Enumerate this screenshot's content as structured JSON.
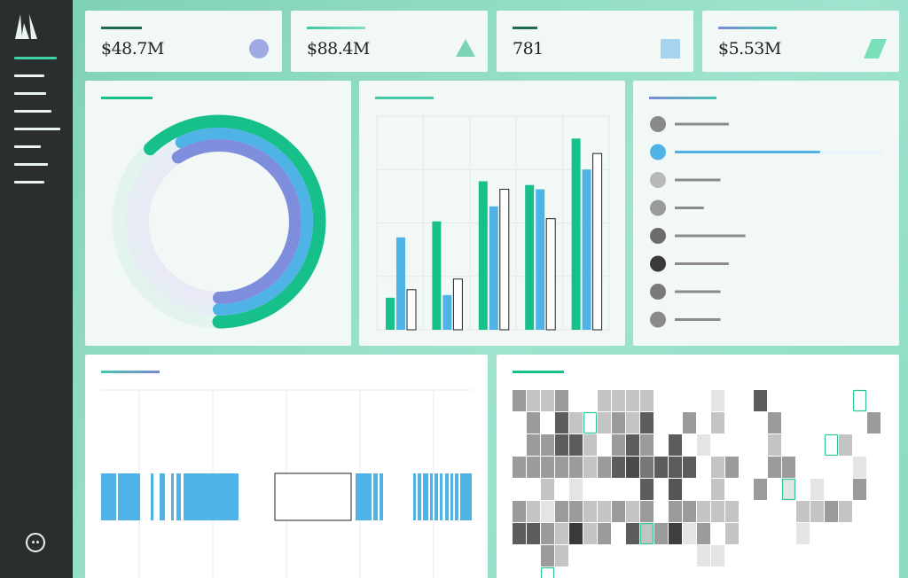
{
  "kpis": [
    {
      "value": "$48.7M",
      "shape": "circle-icon",
      "color": "#8f9ee0",
      "accent": [
        "#1c6b4e",
        "#1c6b4e"
      ]
    },
    {
      "value": "$88.4M",
      "shape": "triangle-icon",
      "color": "#7cd4b8",
      "accent": [
        "#41c6a2",
        "#7ee0c6"
      ]
    },
    {
      "value": "781",
      "shape": "square-icon",
      "color": "#a7d3ef",
      "accent": [
        "#1c6b4e",
        "#1c6b4e"
      ]
    },
    {
      "value": "$5.53M",
      "shape": "parallelogram-icon",
      "color": "#7be0b8",
      "accent": [
        "#7c88d8",
        "#44c4ad"
      ]
    }
  ],
  "colors": {
    "green": "#17c08a",
    "blue": "#4fb3e6",
    "purple": "#7e8ddc",
    "sidebar": "#2b2e2e"
  },
  "donut": {
    "rings": [
      {
        "name": "green-ring",
        "fraction": 0.62,
        "color": "#17c08a"
      },
      {
        "name": "blue-ring",
        "fraction": 0.57,
        "color": "#4fb3e6"
      },
      {
        "name": "purple-ring",
        "fraction": 0.59,
        "color": "#7e8ddc"
      }
    ]
  },
  "chart_data": {
    "type": "bar",
    "categories": [
      "",
      "",
      "",
      "",
      ""
    ],
    "ylim": [
      0,
      4
    ],
    "grid": true,
    "series": [
      {
        "values": [
          0.6,
          2.03,
          2.78,
          2.71,
          3.58
        ],
        "color": "#17c08a"
      },
      {
        "values": [
          1.73,
          0.65,
          2.31,
          2.63,
          3.0
        ],
        "color": "#4fb3e6"
      },
      {
        "values": [
          0.75,
          0.95,
          2.63,
          2.08,
          3.3
        ],
        "color": "#ffffff"
      }
    ]
  },
  "list_items": [
    {
      "color": "#8a8a8a",
      "line_fraction": 0.26
    },
    {
      "color": "#4fb3e6",
      "line_fraction": 0.7,
      "active": true
    },
    {
      "color": "#b8b8b8",
      "line_fraction": 0.22
    },
    {
      "color": "#9a9a9a",
      "line_fraction": 0.14
    },
    {
      "color": "#6c6c6c",
      "line_fraction": 0.34
    },
    {
      "color": "#3a3a3a",
      "line_fraction": 0.26
    },
    {
      "color": "#7a7a7a",
      "line_fraction": 0.22
    },
    {
      "color": "#8a8a8a",
      "line_fraction": 0.22
    }
  ]
}
